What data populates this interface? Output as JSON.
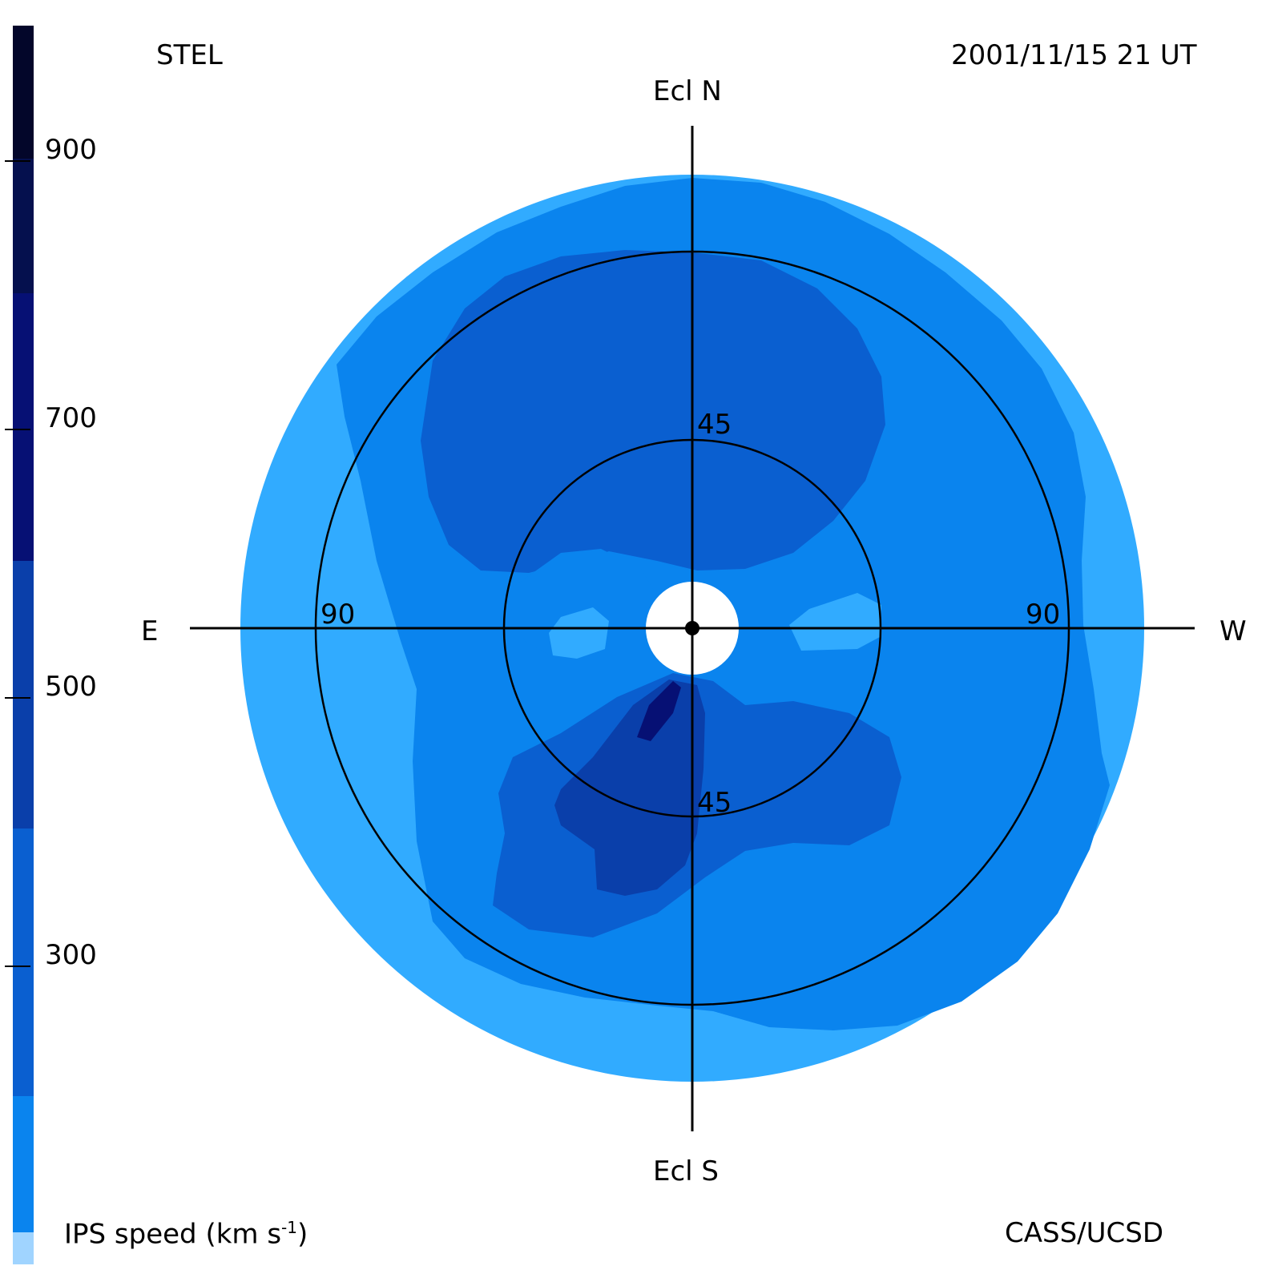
{
  "header": {
    "observatory": "STEL",
    "datetime": "2001/11/15 21 UT"
  },
  "footer": {
    "colorbar_title": "IPS speed (km s",
    "colorbar_title_sup": "-1",
    "colorbar_title_end": ")",
    "credit": "CASS/UCSD"
  },
  "directions": {
    "north": "Ecl N",
    "south": "Ecl S",
    "east": "E",
    "west": "W"
  },
  "rings": {
    "inner_label": "45",
    "outer_label": "90"
  },
  "colorbar": {
    "tick_labels": [
      "900",
      "700",
      "500",
      "300"
    ],
    "levels_from_top": [
      "#03062a",
      "#05104e",
      "#061074",
      "#0a3faa",
      "#0a5fd0",
      "#0a84ee",
      "#31abff",
      "#a0d4ff"
    ]
  },
  "colors": {
    "level_300": "#31abff",
    "level_400": "#0a84ee",
    "level_500": "#0a5fd0",
    "level_600": "#0a3faa",
    "level_700": "#061074"
  }
}
